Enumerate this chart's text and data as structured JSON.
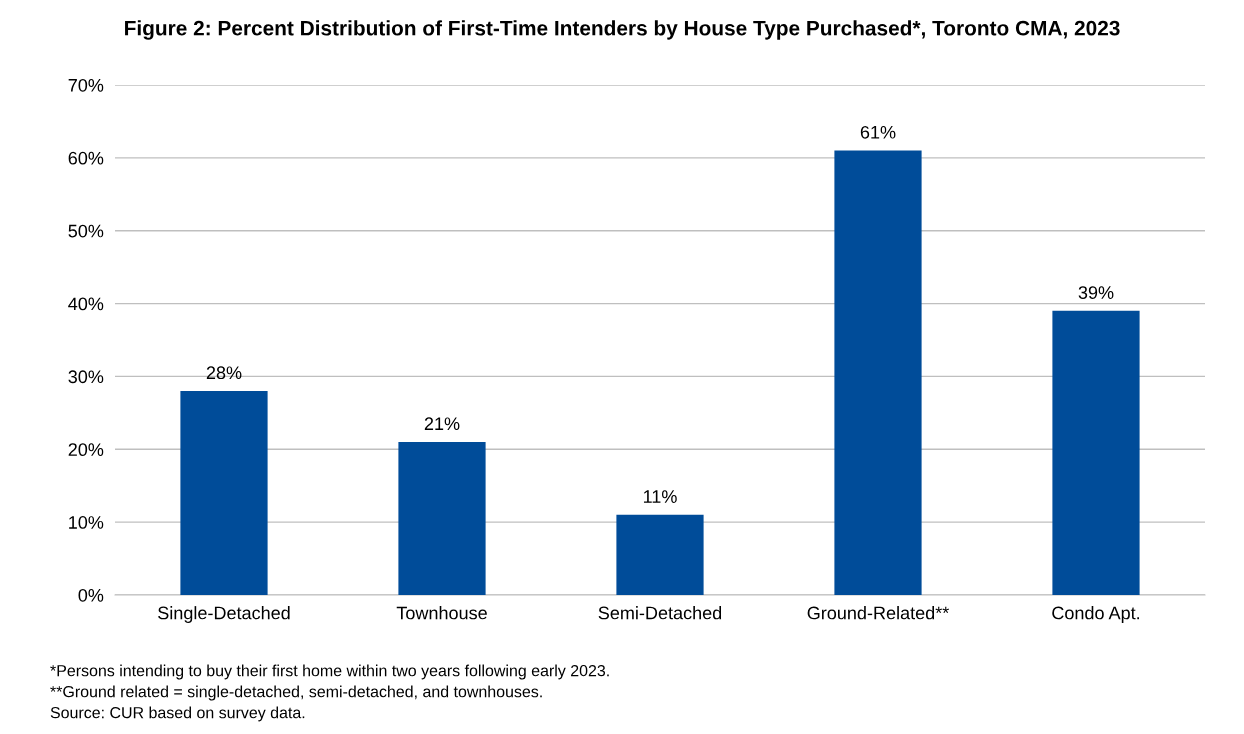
{
  "chart_data": {
    "type": "bar",
    "title": "Figure 2: Percent Distribution of First-Time Intenders by House Type Purchased*, Toronto CMA, 2023",
    "categories": [
      "Single-Detached",
      "Townhouse",
      "Semi-Detached",
      "Ground-Related**",
      "Condo Apt."
    ],
    "values": [
      28,
      21,
      11,
      61,
      39
    ],
    "value_labels": [
      "28%",
      "21%",
      "11%",
      "61%",
      "39%"
    ],
    "color": "#004c99",
    "ylim": [
      0,
      70
    ],
    "yticks": [
      {
        "value": 0,
        "label": "0%"
      },
      {
        "value": 10,
        "label": "10%"
      },
      {
        "value": 20,
        "label": "20%"
      },
      {
        "value": 30,
        "label": "30%"
      },
      {
        "value": 40,
        "label": "40%"
      },
      {
        "value": 50,
        "label": "50%"
      },
      {
        "value": 60,
        "label": "60%"
      },
      {
        "value": 70,
        "label": "70%"
      }
    ],
    "grid": "y",
    "annotations": [
      "*Persons intending to buy their first home within two years following early 2023.",
      "**Ground related = single-detached, semi-detached, and townhouses.",
      "Source: CUR based on survey data."
    ]
  }
}
